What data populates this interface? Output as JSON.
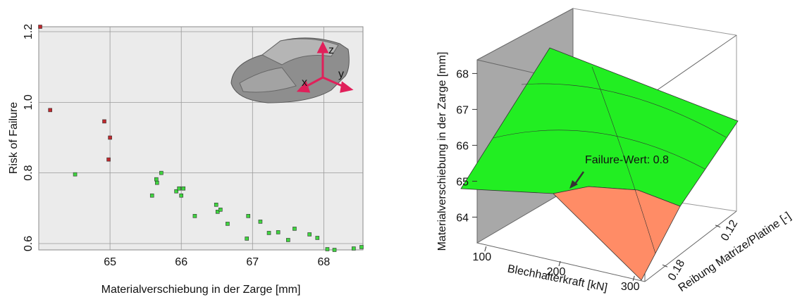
{
  "chart_data": [
    {
      "type": "scatter",
      "x_label": "Materialverschiebung in der Zarge [mm]",
      "y_label": "Risk of Failure",
      "xlim": [
        64.0,
        68.55
      ],
      "xticks": [
        65,
        66,
        67,
        68
      ],
      "ylim": [
        0.582,
        1.214
      ],
      "yticks": [
        0.6,
        0.8,
        {
          "value": 1.0,
          "label": "1.0"
        },
        1.2
      ],
      "grid": true,
      "inset_axes": [
        "x",
        "y",
        "z"
      ],
      "series": [
        {
          "color": "#c0282d",
          "x": [
            64.02,
            64.16,
            64.92,
            65.0,
            64.98
          ],
          "values": [
            1.214,
            0.978,
            0.946,
            0.9,
            0.838
          ]
        },
        {
          "color": "#3fd43f",
          "x": [
            64.51,
            65.59,
            65.65,
            65.66,
            65.72,
            65.93,
            65.97,
            66.03,
            66.0,
            66.19,
            66.49,
            66.51,
            66.55,
            66.65,
            66.94,
            66.92,
            67.11,
            67.23,
            67.36,
            67.5,
            67.59,
            67.8,
            67.91,
            68.05,
            68.15,
            68.42,
            68.53
          ],
          "values": [
            0.796,
            0.736,
            0.782,
            0.772,
            0.8,
            0.748,
            0.756,
            0.756,
            0.736,
            0.678,
            0.71,
            0.69,
            0.696,
            0.656,
            0.678,
            0.614,
            0.662,
            0.63,
            0.632,
            0.61,
            0.642,
            0.626,
            0.616,
            0.584,
            0.582,
            0.586,
            0.59
          ]
        }
      ]
    },
    {
      "type": "surface3d",
      "x_label": "Blechhalterkraft [kN]",
      "y_label": "Reibung Matrize/Platine [-]",
      "z_label": "Materialverschiebung in der Zarge  [mm]",
      "xlim": [
        85,
        315
      ],
      "xticks": [
        100,
        200,
        300
      ],
      "ylim": [
        0.2,
        0.1
      ],
      "yticks": [
        0.18,
        0.12
      ],
      "zlim": [
        63.4,
        68.4
      ],
      "zticks": [
        64,
        65,
        66,
        67,
        68
      ],
      "surface_color": "#22ee22",
      "failure_color": "#ff8c66",
      "annotation": "Failure-Wert: 0.8"
    }
  ]
}
